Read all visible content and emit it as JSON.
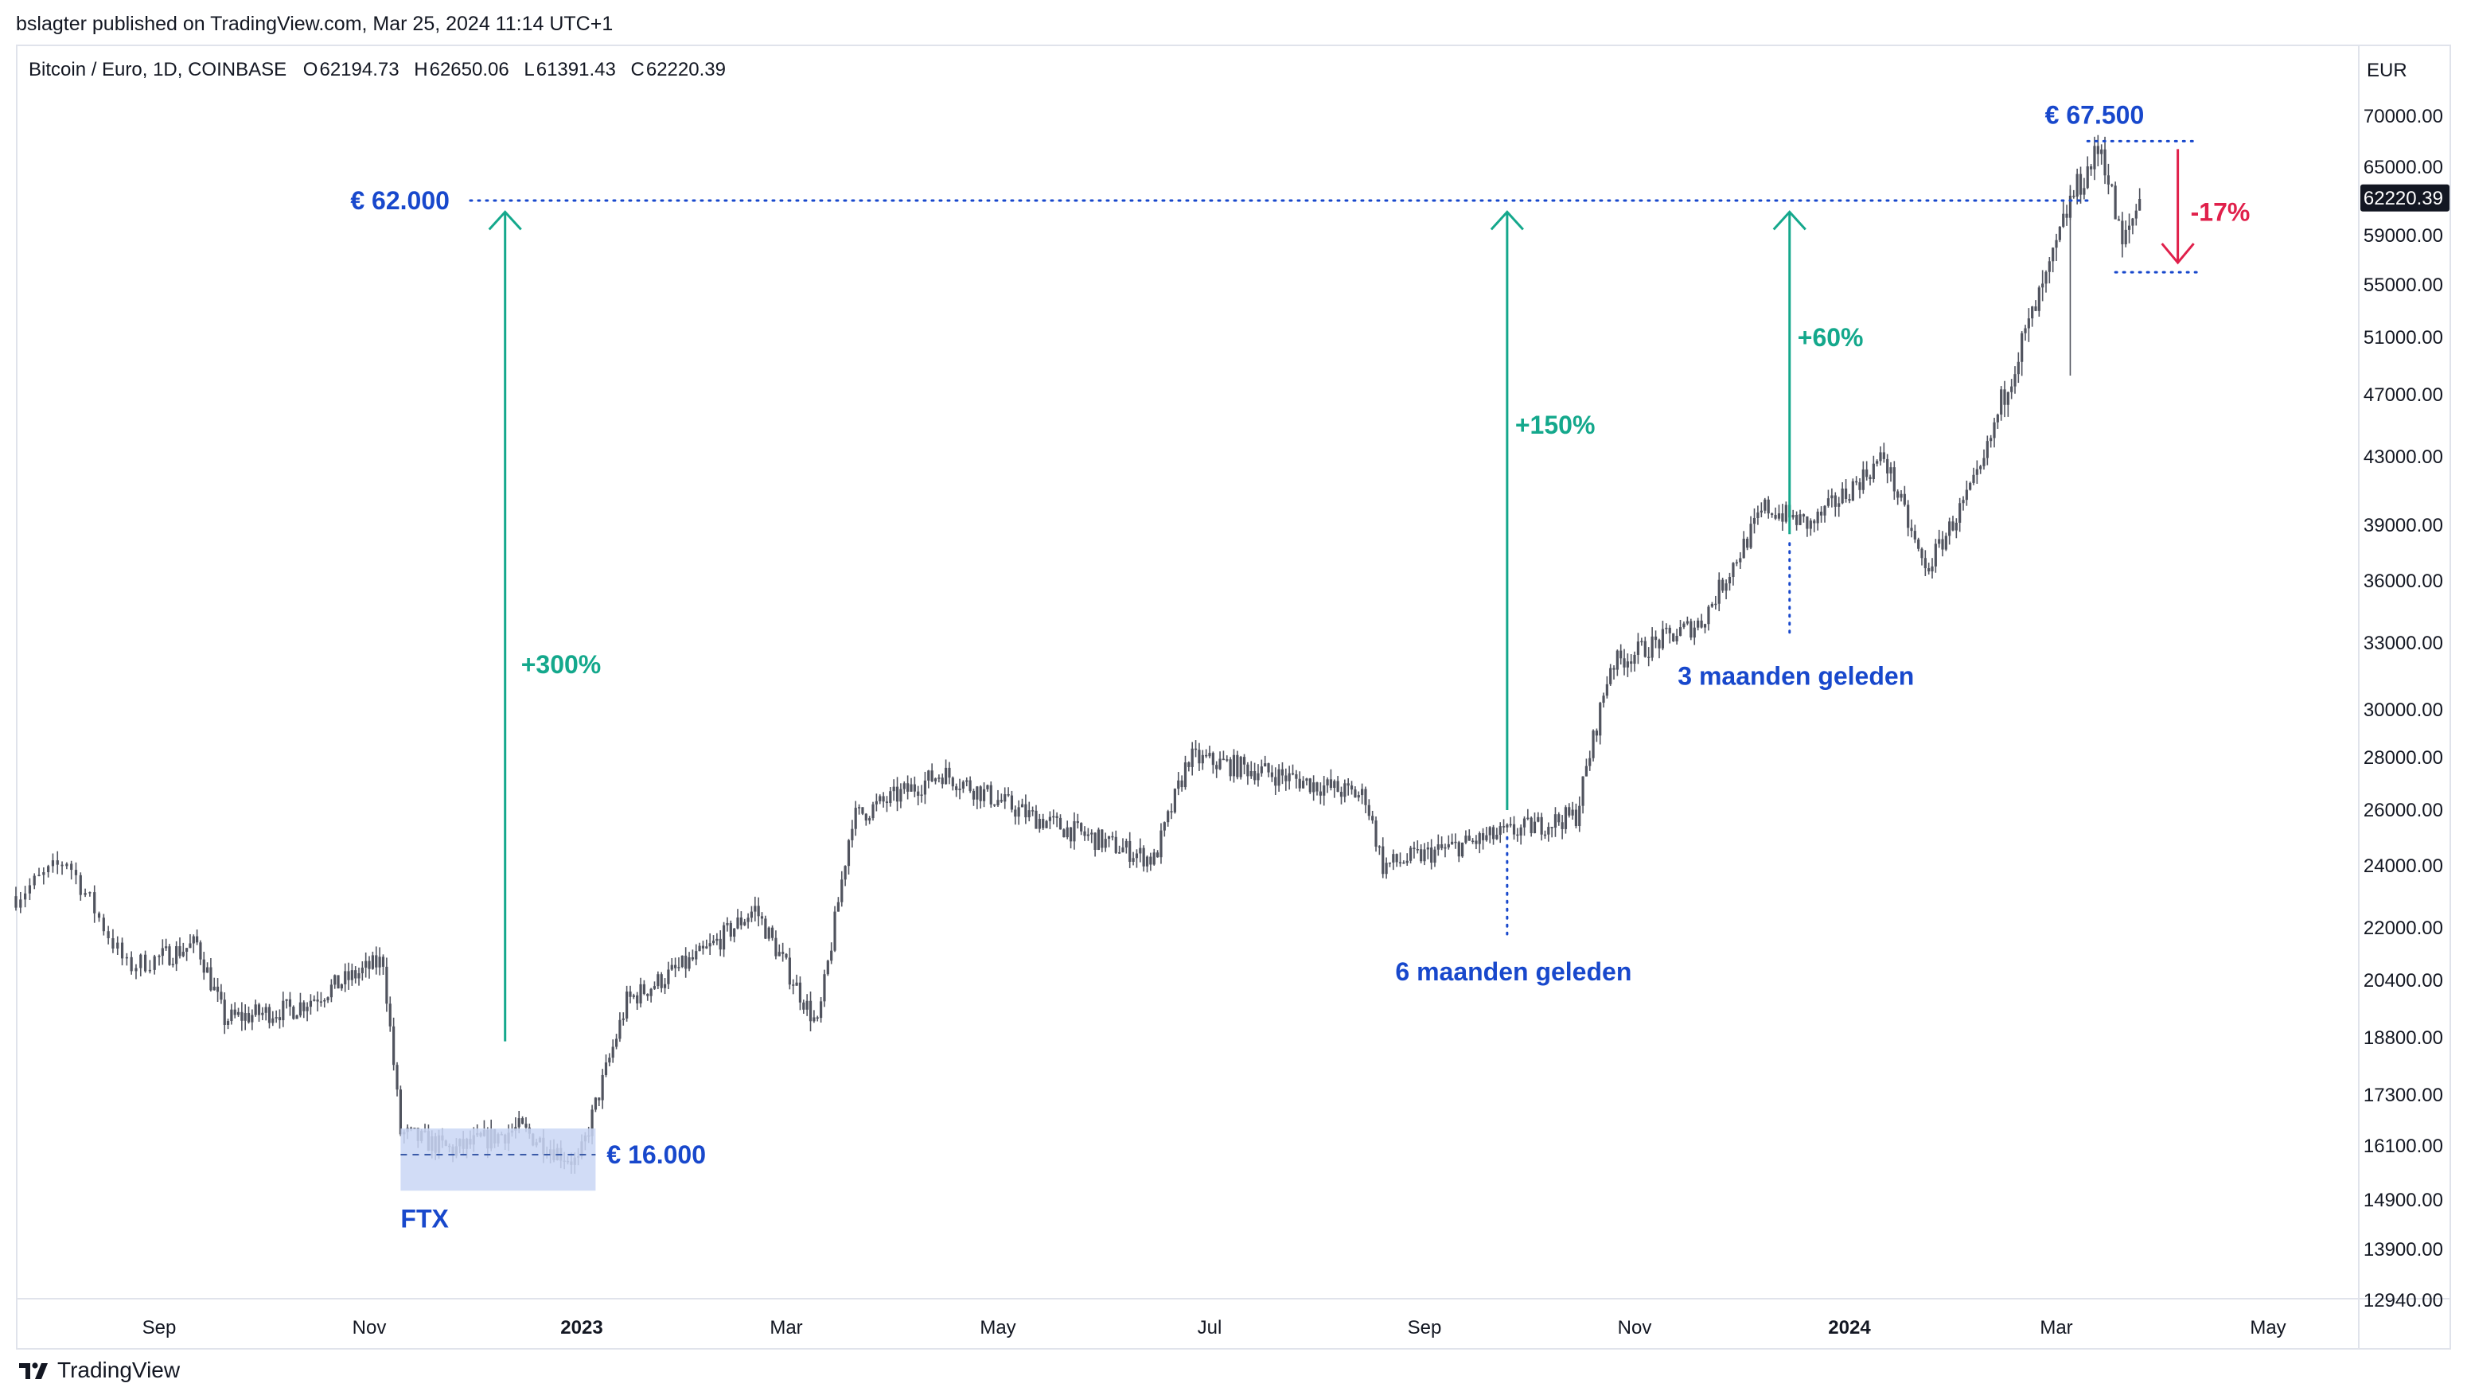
{
  "header": {
    "published_line": "bslagter published on TradingView.com, Mar 25, 2024 11:14 UTC+1"
  },
  "legend": {
    "symbol": "Bitcoin / Euro, 1D, COINBASE",
    "open_label": "O",
    "open": "62194.73",
    "high_label": "H",
    "high": "62650.06",
    "low_label": "L",
    "low": "61391.43",
    "close_label": "C",
    "close": "62220.39"
  },
  "footer": {
    "brand": "TradingView"
  },
  "colors": {
    "candle": "#50535e",
    "blue": "#1848cc",
    "green": "#089981",
    "teal_arrow": "#14a88c",
    "red": "#e0204b",
    "box": "#c9d6f5"
  },
  "chart_data": {
    "type": "candlestick",
    "title": "Bitcoin / Euro, 1D, COINBASE",
    "currency": "EUR",
    "price_scale": "log",
    "last_price": "62220.39",
    "y_ticks": [
      70000,
      65000,
      59000,
      55000,
      51000,
      47000,
      43000,
      39000,
      36000,
      33000,
      30000,
      28000,
      26000,
      24000,
      22000,
      20400,
      18800,
      17300,
      16100,
      14900,
      13900,
      12940
    ],
    "y_tick_labels": [
      "70000.00",
      "65000.00",
      "59000.00",
      "55000.00",
      "51000.00",
      "47000.00",
      "43000.00",
      "39000.00",
      "36000.00",
      "33000.00",
      "30000.00",
      "28000.00",
      "26000.00",
      "24000.00",
      "22000.00",
      "20400.00",
      "18800.00",
      "17300.00",
      "16100.00",
      "14900.00",
      "13900.00",
      "12940.00"
    ],
    "x_ticks": [
      {
        "label": "Sep",
        "date": "2022-09-01",
        "bold": false
      },
      {
        "label": "Nov",
        "date": "2022-11-01",
        "bold": false
      },
      {
        "label": "2023",
        "date": "2023-01-01",
        "bold": true
      },
      {
        "label": "Mar",
        "date": "2023-03-01",
        "bold": false
      },
      {
        "label": "May",
        "date": "2023-05-01",
        "bold": false
      },
      {
        "label": "Jul",
        "date": "2023-07-01",
        "bold": false
      },
      {
        "label": "Sep",
        "date": "2023-09-01",
        "bold": false
      },
      {
        "label": "Nov",
        "date": "2023-11-01",
        "bold": false
      },
      {
        "label": "2024",
        "date": "2024-01-01",
        "bold": true
      },
      {
        "label": "Mar",
        "date": "2024-03-01",
        "bold": false
      },
      {
        "label": "May",
        "date": "2024-05-01",
        "bold": false
      }
    ],
    "range": {
      "start": "2022-08-01",
      "end": "2024-03-25"
    },
    "price_path": [
      {
        "date": "2022-08-01",
        "price": 23000
      },
      {
        "date": "2022-08-12",
        "price": 24200
      },
      {
        "date": "2022-08-25",
        "price": 20800
      },
      {
        "date": "2022-09-12",
        "price": 21500
      },
      {
        "date": "2022-09-20",
        "price": 19300
      },
      {
        "date": "2022-10-10",
        "price": 19600
      },
      {
        "date": "2022-11-05",
        "price": 21000
      },
      {
        "date": "2022-11-10",
        "price": 16400
      },
      {
        "date": "2022-11-25",
        "price": 16000
      },
      {
        "date": "2022-12-14",
        "price": 16500
      },
      {
        "date": "2022-12-31",
        "price": 15700
      },
      {
        "date": "2023-01-14",
        "price": 19800
      },
      {
        "date": "2023-02-05",
        "price": 21200
      },
      {
        "date": "2023-02-20",
        "price": 22600
      },
      {
        "date": "2023-03-10",
        "price": 19100
      },
      {
        "date": "2023-03-20",
        "price": 25700
      },
      {
        "date": "2023-04-15",
        "price": 27400
      },
      {
        "date": "2023-05-10",
        "price": 25800
      },
      {
        "date": "2023-06-15",
        "price": 24200
      },
      {
        "date": "2023-06-25",
        "price": 28000
      },
      {
        "date": "2023-07-15",
        "price": 27500
      },
      {
        "date": "2023-08-15",
        "price": 26500
      },
      {
        "date": "2023-08-20",
        "price": 24000
      },
      {
        "date": "2023-09-20",
        "price": 25000
      },
      {
        "date": "2023-10-15",
        "price": 25800
      },
      {
        "date": "2023-10-25",
        "price": 32000
      },
      {
        "date": "2023-11-20",
        "price": 34000
      },
      {
        "date": "2023-12-08",
        "price": 40000
      },
      {
        "date": "2023-12-21",
        "price": 39000
      },
      {
        "date": "2024-01-11",
        "price": 43000
      },
      {
        "date": "2024-01-23",
        "price": 36500
      },
      {
        "date": "2024-02-08",
        "price": 42000
      },
      {
        "date": "2024-02-16",
        "price": 48000
      },
      {
        "date": "2024-02-28",
        "price": 56000
      },
      {
        "date": "2024-03-05",
        "price": 62000
      },
      {
        "date": "2024-03-14",
        "price": 67000
      },
      {
        "date": "2024-03-20",
        "price": 58000
      },
      {
        "date": "2024-03-25",
        "price": 62220
      }
    ],
    "annotations": {
      "level_62000": {
        "text": "€ 62.000",
        "price": 62000,
        "start": "2022-11-30",
        "end": "2024-03-10"
      },
      "level_67500": {
        "text": "€ 67.500",
        "price": 67500
      },
      "drop_low_price": 56000,
      "drop_arrow": {
        "text": "-17%",
        "date": "2024-04-05"
      },
      "arrow_300": {
        "text": "+300%",
        "date": "2022-12-10",
        "from": 18700,
        "to": 61000
      },
      "arrow_150": {
        "text": "+150%",
        "date": "2023-09-25",
        "from": 26000,
        "to": 61000
      },
      "arrow_60": {
        "text": "+60%",
        "date": "2023-12-15",
        "from": 38500,
        "to": 61000
      },
      "ftx_box": {
        "text": "€ 16.000",
        "start": "2022-11-10",
        "end": "2023-01-05",
        "high": 16500,
        "low": 15100,
        "mid": 15900
      },
      "ftx_label": {
        "text": "FTX"
      },
      "six_months": {
        "text": "6 maanden geleden",
        "date": "2023-09-25",
        "top": 25000,
        "bottom": 21800
      },
      "three_months": {
        "text": "3 maanden geleden",
        "date": "2023-12-15",
        "top": 38000,
        "bottom": 33200
      }
    }
  }
}
